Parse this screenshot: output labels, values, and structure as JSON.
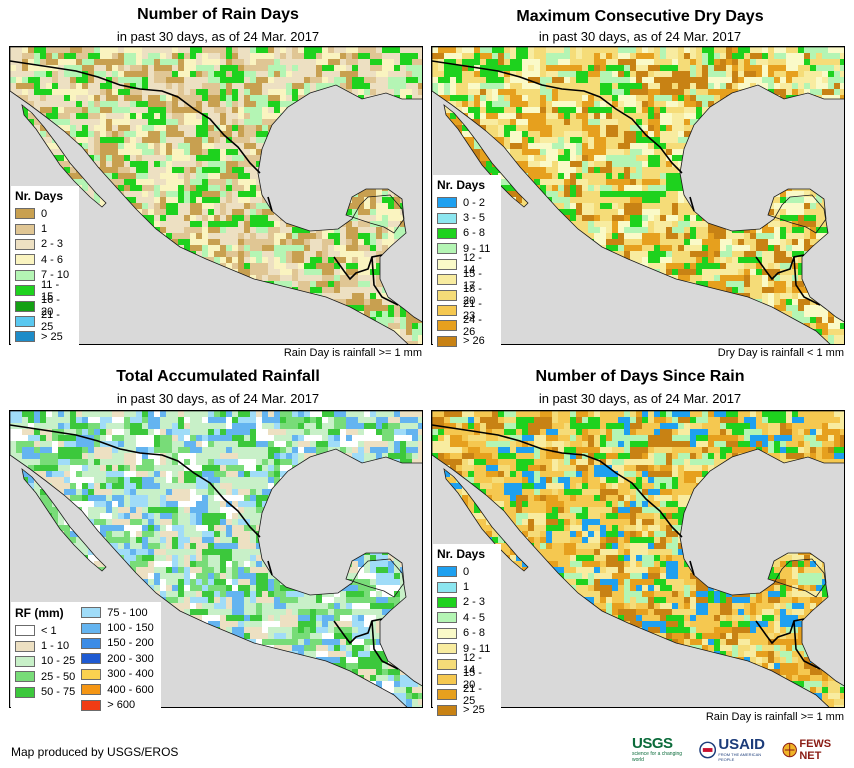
{
  "panels": [
    {
      "title": "Number of Rain Days",
      "subtitle": "in past 30 days, as of 24 Mar. 2017",
      "footnote": "Rain Day is rainfall >= 1 mm",
      "legend_title": "Nr. Days",
      "legend": [
        {
          "label": "0",
          "color": "#c8a050"
        },
        {
          "label": "1",
          "color": "#e0c694"
        },
        {
          "label": "2 - 3",
          "color": "#ede0c2"
        },
        {
          "label": "4 - 6",
          "color": "#faf4c0"
        },
        {
          "label": "7 - 10",
          "color": "#b4f5b4"
        },
        {
          "label": "11 - 15",
          "color": "#1ed21e"
        },
        {
          "label": "16 - 20",
          "color": "#14a014"
        },
        {
          "label": "21 - 25",
          "color": "#5ac8f0"
        },
        {
          "label": "> 25",
          "color": "#1e8cc8"
        }
      ]
    },
    {
      "title": "Maximum Consecutive Dry Days",
      "subtitle": "in past 30 days, as of 24 Mar. 2017",
      "footnote": "Dry Day is rainfall < 1 mm",
      "legend_title": "Nr. Days",
      "legend": [
        {
          "label": "0 - 2",
          "color": "#1ea0f0"
        },
        {
          "label": "3 - 5",
          "color": "#8ce6f0"
        },
        {
          "label": "6 - 8",
          "color": "#1ed21e"
        },
        {
          "label": "9 - 11",
          "color": "#b4f5b4"
        },
        {
          "label": "12 - 14",
          "color": "#fafac8"
        },
        {
          "label": "15 - 17",
          "color": "#f8eca0"
        },
        {
          "label": "18 - 20",
          "color": "#f5dc78"
        },
        {
          "label": "21 - 23",
          "color": "#f5c850"
        },
        {
          "label": "24 - 26",
          "color": "#e6a01e"
        },
        {
          "label": "> 26",
          "color": "#c88214"
        }
      ]
    },
    {
      "title": "Total Accumulated Rainfall",
      "subtitle": "in past 30 days, as of 24 Mar. 2017",
      "footnote": "",
      "legend_title": "RF (mm)",
      "legend_col1": [
        {
          "label": "< 1",
          "color": "#ffffff"
        },
        {
          "label": "1 - 10",
          "color": "#ede0c2"
        },
        {
          "label": "10 - 25",
          "color": "#c8f0c8"
        },
        {
          "label": "25 - 50",
          "color": "#78dc78"
        },
        {
          "label": "50 - 75",
          "color": "#3cc83c"
        }
      ],
      "legend_col2": [
        {
          "label": "75 - 100",
          "color": "#a0dcf8"
        },
        {
          "label": "100 - 150",
          "color": "#64b4f0"
        },
        {
          "label": "150 - 200",
          "color": "#3c8ce6"
        },
        {
          "label": "200 - 300",
          "color": "#1e5ad2"
        },
        {
          "label": "300 - 400",
          "color": "#fad250"
        },
        {
          "label": "400 - 600",
          "color": "#f59614"
        },
        {
          "label": "> 600",
          "color": "#f03c14"
        }
      ]
    },
    {
      "title": "Number of Days Since Rain",
      "subtitle": "in past 30 days, as of 24 Mar. 2017",
      "footnote": "Rain Day is rainfall >= 1 mm",
      "legend_title": "Nr. Days",
      "legend": [
        {
          "label": "0",
          "color": "#1ea0f0"
        },
        {
          "label": "1",
          "color": "#8ce6f0"
        },
        {
          "label": "2 - 3",
          "color": "#1ed21e"
        },
        {
          "label": "4 - 5",
          "color": "#b4f5b4"
        },
        {
          "label": "6 - 8",
          "color": "#fafac8"
        },
        {
          "label": "9 - 11",
          "color": "#f8eca0"
        },
        {
          "label": "12 - 14",
          "color": "#f5dc78"
        },
        {
          "label": "15 - 20",
          "color": "#f5c850"
        },
        {
          "label": "21 - 25",
          "color": "#e6a01e"
        },
        {
          "label": "> 25",
          "color": "#c88214"
        }
      ]
    }
  ],
  "credit": "Map produced by USGS/EROS",
  "logos": {
    "usgs": {
      "wordmark": "USGS",
      "tagline": "science for a changing world"
    },
    "usaid": {
      "wordmark": "USAID",
      "tagline": "FROM THE AMERICAN PEOPLE"
    },
    "fews": {
      "wordmark": "FEWS NET"
    }
  },
  "colors": {
    "ocean": "#d9d9d9",
    "border": "#000000"
  }
}
